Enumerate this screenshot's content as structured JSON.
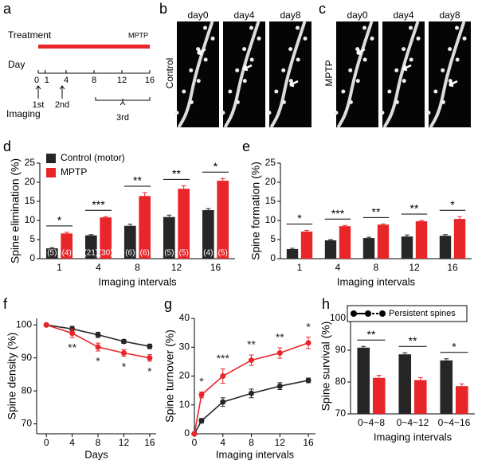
{
  "timeline": {
    "panel": "a",
    "treatment": "Treatment",
    "drug": "MPTP",
    "day_label": "Day",
    "days": [
      0,
      1,
      4,
      8,
      12,
      16
    ],
    "imaging": [
      "1st",
      "2nd",
      "3rd"
    ],
    "imaging_label": "Imaging"
  },
  "images": [
    {
      "panel": "b",
      "group": "Control",
      "days": [
        "day0",
        "day4",
        "day8"
      ]
    },
    {
      "panel": "c",
      "group": "MPTP",
      "days": [
        "day0",
        "day4",
        "day8"
      ]
    }
  ],
  "chart_data": [
    {
      "type": "bar",
      "panel": "d",
      "ylabel": "Spine elimination (%)",
      "xlabel": "Imaging intervals",
      "categories": [
        "1",
        "4",
        "8",
        "12",
        "16"
      ],
      "ylim": [
        0,
        25
      ],
      "yticks": [
        0,
        5,
        10,
        15,
        20,
        25
      ],
      "legend": "top-left",
      "series": [
        {
          "name": "Control (motor)",
          "color": "#262626",
          "values": [
            2.7,
            6.1,
            8.6,
            10.9,
            12.7
          ],
          "errors": [
            0.2,
            0.2,
            0.4,
            0.5,
            0.4
          ],
          "n_labels": [
            "(5)",
            "(21)",
            "(6)",
            "(5)",
            "(4)"
          ]
        },
        {
          "name": "MPTP",
          "color": "#e8262a",
          "values": [
            6.6,
            10.8,
            16.4,
            18.3,
            20.4
          ],
          "errors": [
            0.3,
            0.2,
            0.9,
            0.8,
            0.6
          ],
          "n_labels": [
            "(4)",
            "(30)",
            "(6)",
            "(5)",
            "(5)"
          ]
        }
      ],
      "significance": [
        "*",
        "***",
        "**",
        "**",
        "*"
      ]
    },
    {
      "type": "bar",
      "panel": "e",
      "ylabel": "Spine formation (%)",
      "xlabel": "Imaging intervals",
      "categories": [
        "1",
        "4",
        "8",
        "12",
        "16"
      ],
      "ylim": [
        0,
        25
      ],
      "yticks": [
        0,
        5,
        10,
        15,
        20,
        25
      ],
      "series": [
        {
          "name": "Control (motor)",
          "color": "#262626",
          "values": [
            2.5,
            4.8,
            5.4,
            5.8,
            6.0
          ],
          "errors": [
            0.2,
            0.2,
            0.2,
            0.4,
            0.3
          ]
        },
        {
          "name": "MPTP",
          "color": "#e8262a",
          "values": [
            7.1,
            8.5,
            8.9,
            9.8,
            10.4
          ],
          "errors": [
            0.3,
            0.2,
            0.2,
            0.2,
            0.6
          ]
        }
      ],
      "significance": [
        "*",
        "***",
        "**",
        "**",
        "*"
      ]
    },
    {
      "type": "line",
      "panel": "f",
      "ylabel": "Spine density (%)",
      "xlabel": "Days",
      "x": [
        0,
        4,
        8,
        12,
        16
      ],
      "xlim": [
        -1.5,
        17
      ],
      "xticks": [
        0,
        4,
        8,
        12,
        16
      ],
      "ylim": [
        67,
        102
      ],
      "yticks": [
        70,
        80,
        90,
        100
      ],
      "series": [
        {
          "name": "Control (motor)",
          "color": "#262626",
          "values": [
            100,
            98.8,
            97,
            95,
            93.5
          ],
          "errors": [
            0.3,
            0.8,
            0.8,
            0.6,
            0.7
          ]
        },
        {
          "name": "MPTP",
          "color": "#e8262a",
          "values": [
            100,
            97.5,
            93.3,
            91.5,
            90
          ],
          "errors": [
            0.4,
            1.3,
            1.2,
            1,
            1
          ]
        }
      ],
      "significance": [
        null,
        "**",
        "*",
        "*",
        "*"
      ],
      "significance_position": "below",
      "significance_color": "#262626"
    },
    {
      "type": "line",
      "panel": "g",
      "ylabel": "Spine turnover (%)",
      "xlabel": "Imaging intervals",
      "x": [
        0,
        1,
        4,
        8,
        12,
        16
      ],
      "xlim": [
        0,
        17
      ],
      "xticks": [
        0,
        4,
        8,
        12,
        16
      ],
      "ylim": [
        0,
        40
      ],
      "yticks": [
        0,
        10,
        20,
        30,
        40
      ],
      "series": [
        {
          "name": "Control (motor)",
          "color": "#262626",
          "values": [
            0,
            4.5,
            11,
            14,
            16.5,
            18.5
          ],
          "errors": [
            0,
            0.8,
            1.5,
            1.5,
            1.2,
            0.8
          ]
        },
        {
          "name": "MPTP",
          "color": "#e8262a",
          "values": [
            0,
            13.5,
            20,
            25.5,
            28,
            31.5
          ],
          "errors": [
            0,
            1,
            2.5,
            1.8,
            1.8,
            2
          ]
        }
      ],
      "significance": [
        null,
        "*",
        "***",
        "**",
        "**",
        "*"
      ],
      "significance_position": "above",
      "significance_color": "#262626"
    },
    {
      "type": "bar",
      "panel": "h",
      "ylabel": "Spine survival (%)",
      "xlabel": "Imaging intervals",
      "annotation": "Persistent spines",
      "categories": [
        "0~4~8",
        "0~4~12",
        "0~4~16"
      ],
      "ylim": [
        70,
        100
      ],
      "yticks": [
        70,
        80,
        90,
        100
      ],
      "series": [
        {
          "name": "Control (motor)",
          "color": "#262626",
          "values": [
            90.8,
            88.7,
            86.8
          ],
          "errors": [
            0.4,
            0.5,
            0.5
          ]
        },
        {
          "name": "MPTP",
          "color": "#e8262a",
          "values": [
            81.3,
            80.6,
            78.7
          ],
          "errors": [
            0.8,
            0.8,
            0.7
          ]
        }
      ],
      "significance": [
        "**",
        "**",
        "*"
      ]
    }
  ]
}
